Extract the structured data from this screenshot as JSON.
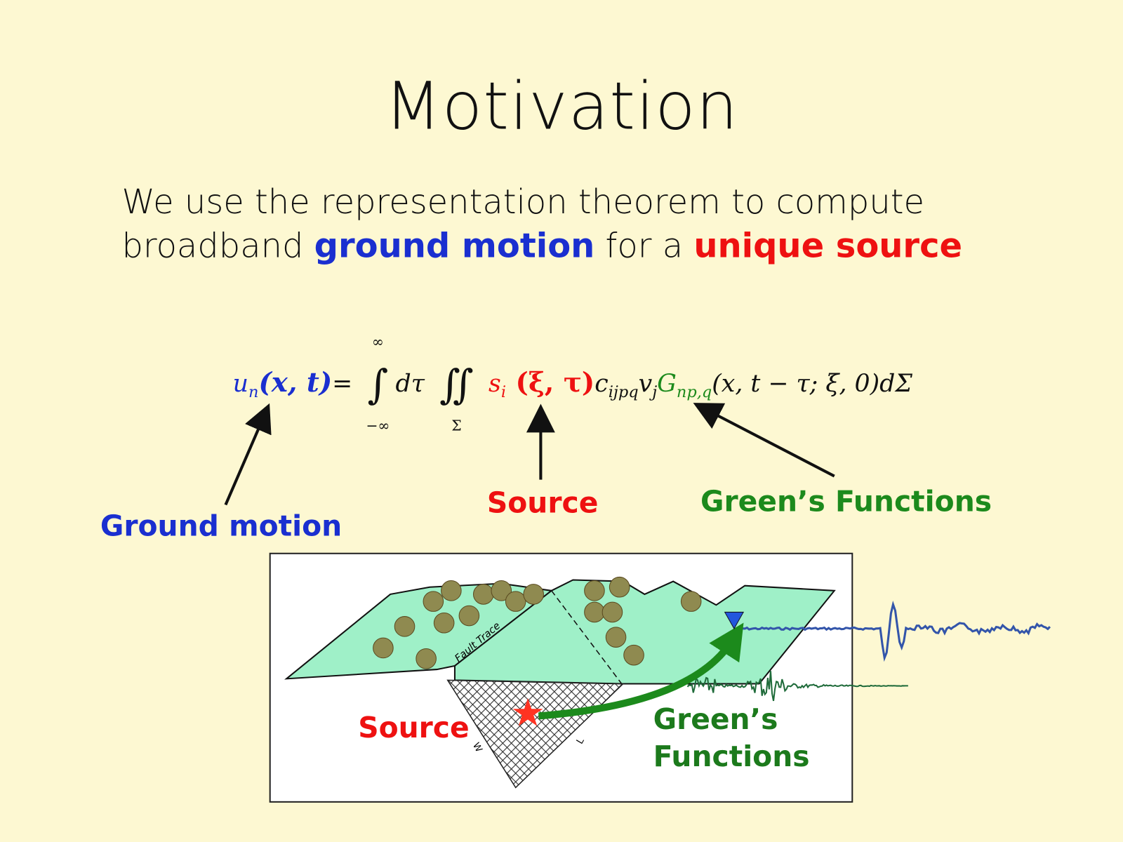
{
  "title": "Motivation",
  "body": {
    "line1": "We use the representation theorem to compute",
    "line2_prefix": "broadband ",
    "line2_highlight1": "ground motion",
    "line2_middle": " for a ",
    "line2_highlight2": "unique source"
  },
  "equation": {
    "lhs": "u",
    "lhs_sub": "n",
    "lhs_args": "(x, t)",
    "equals": " = ",
    "int_upper": "∞",
    "int_lower": "−∞",
    "int_symbol": "∫",
    "dtau": "dτ",
    "dint_symbol": "∬",
    "dint_lower": "Σ",
    "s": "s",
    "s_sub": "i",
    "s_args": " (ξ, τ)",
    "c": "c",
    "c_sub": "ijpq",
    "v": "v",
    "v_sub": "j",
    "G": "G",
    "G_sub": "np,q",
    "G_args": "(x, t − τ; ξ, 0)",
    "dSigma": "dΣ"
  },
  "labels": {
    "ground_motion": "Ground motion",
    "source": "Source",
    "greens_functions": "Green’s Functions"
  },
  "diagram": {
    "fault_trace": "Fault Trace",
    "width_label": "W",
    "length_label": "L",
    "source_label": "Source",
    "greens_line1": "Green’s",
    "greens_line2": "Functions"
  },
  "colors": {
    "background": "#fdf8d2",
    "ground_motion": "#1a2fd0",
    "source": "#e11111",
    "greens": "#1c8a1c",
    "terrain": "#9ff0c8",
    "station": "#2255dd",
    "star": "#ff3322"
  }
}
